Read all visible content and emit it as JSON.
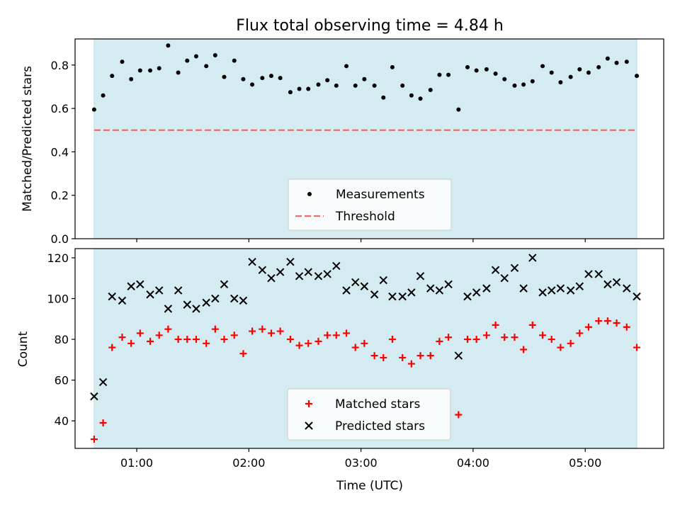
{
  "chart_data": [
    {
      "type": "scatter",
      "title": "Flux total observing time = 4.84 h",
      "xlabel": "",
      "ylabel": "Matched/Predicted stars",
      "xlim": [
        0.45,
        5.7
      ],
      "ylim": [
        0.0,
        0.92
      ],
      "x_unit": "hours (UTC)",
      "yticks": [
        0.0,
        0.2,
        0.4,
        0.6,
        0.8
      ],
      "ytick_labels": [
        "0.0",
        "0.2",
        "0.4",
        "0.6",
        "0.8"
      ],
      "shaded_span": [
        0.62,
        5.46
      ],
      "shaded_color": "#d4ebf1",
      "legend_position": "lower center",
      "threshold": {
        "name": "Threshold",
        "value": 0.5,
        "color": "#ee6c6c",
        "style": "dashed"
      },
      "series": [
        {
          "name": "Measurements",
          "marker": "dot",
          "color": "#000000",
          "x": [
            0.62,
            0.7,
            0.78,
            0.87,
            0.95,
            1.03,
            1.12,
            1.2,
            1.28,
            1.37,
            1.45,
            1.53,
            1.62,
            1.7,
            1.78,
            1.87,
            1.95,
            2.03,
            2.12,
            2.2,
            2.28,
            2.37,
            2.45,
            2.53,
            2.62,
            2.7,
            2.78,
            2.87,
            2.95,
            3.03,
            3.12,
            3.2,
            3.28,
            3.37,
            3.45,
            3.53,
            3.62,
            3.7,
            3.78,
            3.87,
            3.95,
            4.03,
            4.12,
            4.2,
            4.28,
            4.37,
            4.45,
            4.53,
            4.62,
            4.7,
            4.78,
            4.87,
            4.95,
            5.03,
            5.12,
            5.2,
            5.28,
            5.37,
            5.46
          ],
          "y": [
            0.595,
            0.66,
            0.75,
            0.815,
            0.735,
            0.775,
            0.775,
            0.785,
            0.89,
            0.765,
            0.82,
            0.84,
            0.795,
            0.845,
            0.745,
            0.82,
            0.735,
            0.71,
            0.74,
            0.75,
            0.74,
            0.675,
            0.69,
            0.69,
            0.71,
            0.73,
            0.705,
            0.795,
            0.705,
            0.735,
            0.705,
            0.65,
            0.79,
            0.705,
            0.66,
            0.645,
            0.685,
            0.755,
            0.755,
            0.595,
            0.79,
            0.775,
            0.78,
            0.76,
            0.735,
            0.705,
            0.71,
            0.725,
            0.795,
            0.765,
            0.72,
            0.745,
            0.78,
            0.765,
            0.79,
            0.83,
            0.81,
            0.815,
            0.75
          ]
        }
      ]
    },
    {
      "type": "scatter",
      "title": "",
      "xlabel": "Time (UTC)",
      "ylabel": "Count",
      "xlim": [
        0.45,
        5.7
      ],
      "ylim": [
        26.5,
        124.5
      ],
      "x_unit": "hours (UTC)",
      "xticks": [
        1,
        2,
        3,
        4,
        5
      ],
      "xtick_labels": [
        "01:00",
        "02:00",
        "03:00",
        "04:00",
        "05:00"
      ],
      "yticks": [
        40,
        60,
        80,
        100,
        120
      ],
      "ytick_labels": [
        "40",
        "60",
        "80",
        "100",
        "120"
      ],
      "shaded_span": [
        0.62,
        5.46
      ],
      "shaded_color": "#d4ebf1",
      "legend_position": "lower center",
      "series": [
        {
          "name": "Matched stars",
          "marker": "plus",
          "color": "#ff0000",
          "x": [
            0.62,
            0.7,
            0.78,
            0.87,
            0.95,
            1.03,
            1.12,
            1.2,
            1.28,
            1.37,
            1.45,
            1.53,
            1.62,
            1.7,
            1.78,
            1.87,
            1.95,
            2.03,
            2.12,
            2.2,
            2.28,
            2.37,
            2.45,
            2.53,
            2.62,
            2.7,
            2.78,
            2.87,
            2.95,
            3.03,
            3.12,
            3.2,
            3.28,
            3.37,
            3.45,
            3.53,
            3.62,
            3.7,
            3.78,
            3.87,
            3.95,
            4.03,
            4.12,
            4.2,
            4.28,
            4.37,
            4.45,
            4.53,
            4.62,
            4.7,
            4.78,
            4.87,
            4.95,
            5.03,
            5.12,
            5.2,
            5.28,
            5.37,
            5.46
          ],
          "y": [
            31,
            39,
            76,
            81,
            78,
            83,
            79,
            82,
            85,
            80,
            80,
            80,
            78,
            85,
            80,
            82,
            73,
            84,
            85,
            83,
            84,
            80,
            77,
            78,
            79,
            82,
            82,
            83,
            76,
            78,
            72,
            71,
            80,
            71,
            68,
            72,
            72,
            79,
            81,
            43,
            80,
            80,
            82,
            87,
            81,
            81,
            75,
            87,
            82,
            80,
            76,
            78,
            83,
            86,
            89,
            89,
            88,
            86,
            76
          ]
        },
        {
          "name": "Predicted stars",
          "marker": "x",
          "color": "#000000",
          "x": [
            0.62,
            0.7,
            0.78,
            0.87,
            0.95,
            1.03,
            1.12,
            1.2,
            1.28,
            1.37,
            1.45,
            1.53,
            1.62,
            1.7,
            1.78,
            1.87,
            1.95,
            2.03,
            2.12,
            2.2,
            2.28,
            2.37,
            2.45,
            2.53,
            2.62,
            2.7,
            2.78,
            2.87,
            2.95,
            3.03,
            3.12,
            3.2,
            3.28,
            3.37,
            3.45,
            3.53,
            3.62,
            3.7,
            3.78,
            3.87,
            3.95,
            4.03,
            4.12,
            4.2,
            4.28,
            4.37,
            4.45,
            4.53,
            4.62,
            4.7,
            4.78,
            4.87,
            4.95,
            5.03,
            5.12,
            5.2,
            5.28,
            5.37,
            5.46
          ],
          "y": [
            52,
            59,
            101,
            99,
            106,
            107,
            102,
            104,
            95,
            104,
            97,
            95,
            98,
            100,
            107,
            100,
            99,
            118,
            114,
            110,
            113,
            118,
            111,
            113,
            111,
            112,
            116,
            104,
            108,
            106,
            102,
            109,
            101,
            101,
            103,
            111,
            105,
            104,
            107,
            72,
            101,
            103,
            105,
            114,
            110,
            115,
            105,
            120,
            103,
            104,
            105,
            104,
            106,
            112,
            112,
            107,
            108,
            105,
            101
          ]
        }
      ]
    }
  ]
}
